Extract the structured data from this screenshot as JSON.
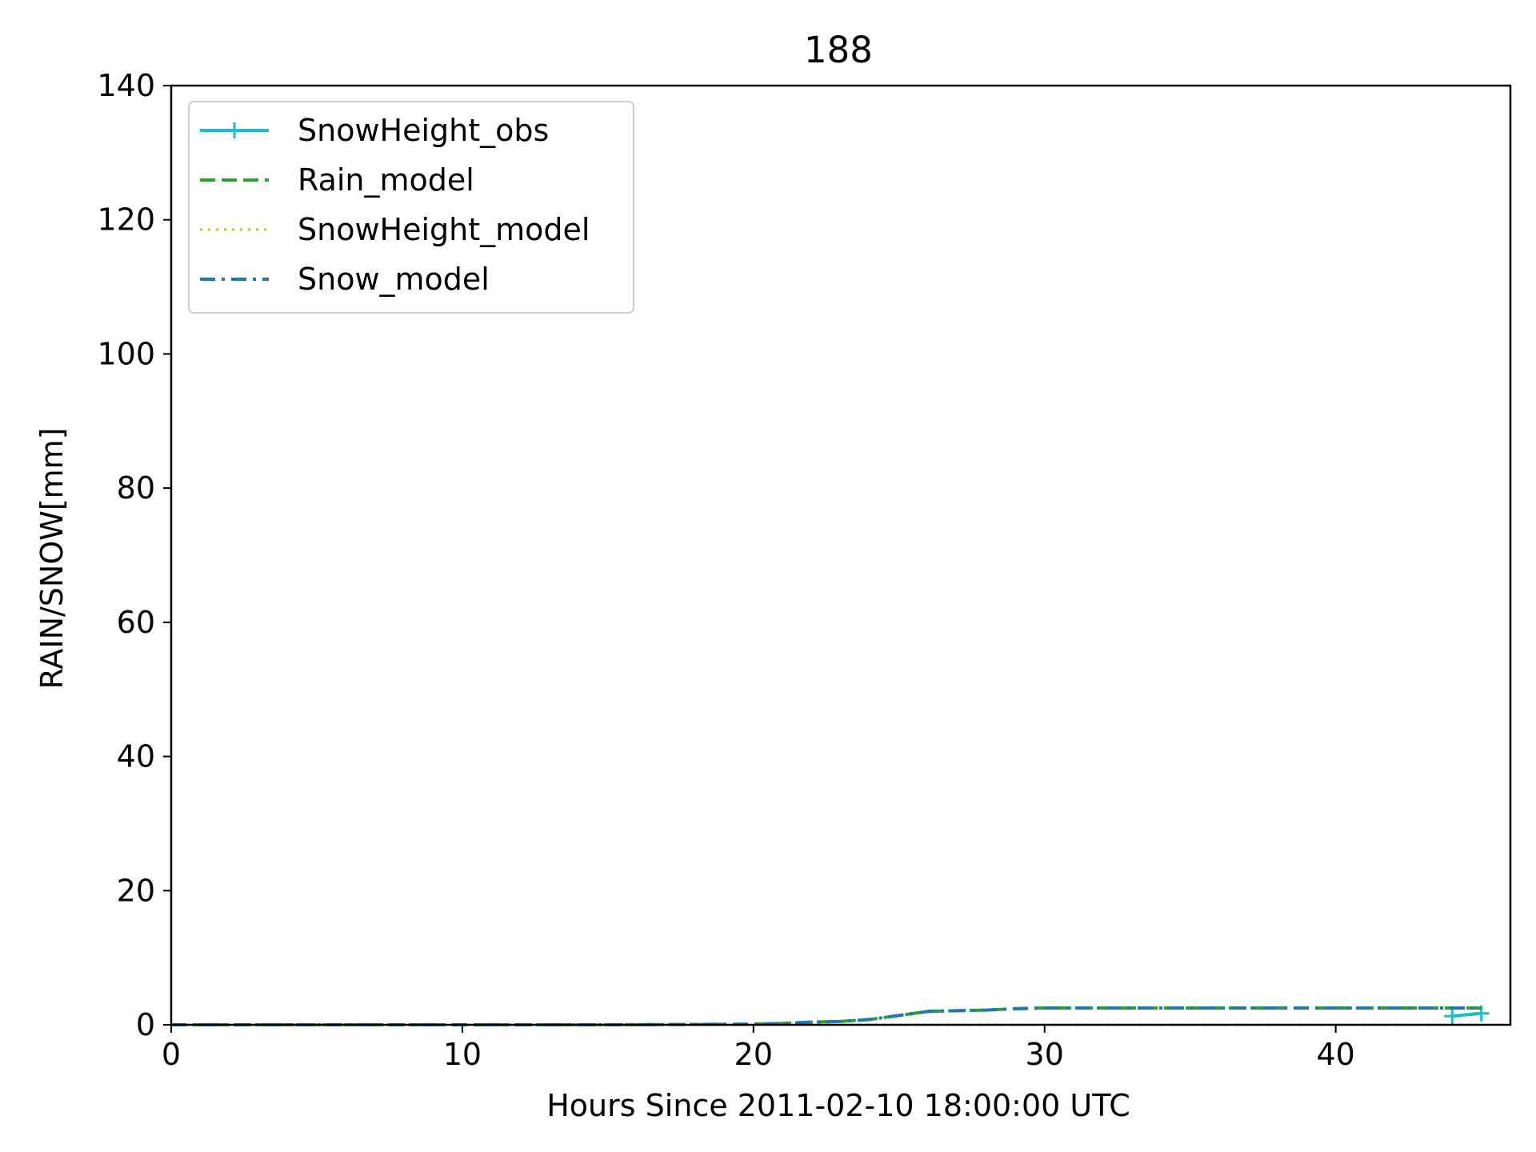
{
  "chart_data": {
    "type": "line",
    "title": "188",
    "xlabel": "Hours Since 2011-02-10 18:00:00 UTC",
    "ylabel": "RAIN/SNOW[mm]",
    "xlim": [
      0,
      46
    ],
    "ylim": [
      0,
      140
    ],
    "xticks": [
      0,
      10,
      20,
      30,
      40
    ],
    "yticks": [
      0,
      20,
      40,
      60,
      80,
      100,
      120,
      140
    ],
    "grid": false,
    "legend_position": "top-left",
    "series": [
      {
        "name": "SnowHeight_obs",
        "style": "solid-plus",
        "color": "#17becf",
        "x": [
          44,
          45
        ],
        "y": [
          1.3,
          1.7
        ]
      },
      {
        "name": "Rain_model",
        "style": "dashed",
        "color": "#2ca02c",
        "x": [
          0,
          5,
          10,
          15,
          20,
          21,
          22,
          23,
          24,
          25,
          26,
          27,
          28,
          29,
          30,
          35,
          40,
          45
        ],
        "y": [
          0,
          0,
          0,
          0,
          0.1,
          0.2,
          0.4,
          0.5,
          0.8,
          1.4,
          2.0,
          2.1,
          2.2,
          2.4,
          2.5,
          2.5,
          2.5,
          2.5
        ]
      },
      {
        "name": "SnowHeight_model",
        "style": "dotted",
        "color": "#bcbd22",
        "x": [
          0,
          45
        ],
        "y": [
          0,
          0
        ]
      },
      {
        "name": "Snow_model",
        "style": "dashdot",
        "color": "#1f77b4",
        "x": [
          0,
          5,
          10,
          15,
          20,
          21,
          22,
          23,
          24,
          25,
          26,
          27,
          28,
          29,
          30,
          35,
          40,
          45
        ],
        "y": [
          0,
          0,
          0,
          0,
          0.1,
          0.2,
          0.4,
          0.5,
          0.8,
          1.4,
          2.0,
          2.1,
          2.2,
          2.4,
          2.5,
          2.5,
          2.5,
          2.5
        ]
      }
    ]
  }
}
